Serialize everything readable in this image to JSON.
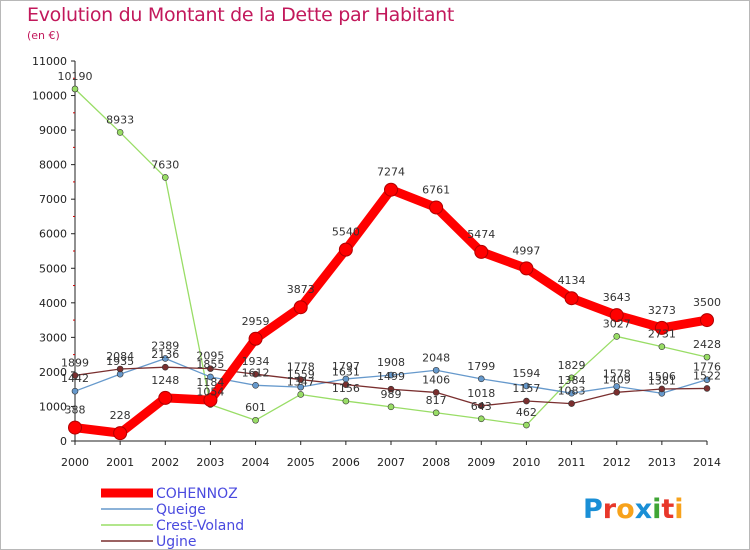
{
  "chart_data": {
    "type": "line",
    "title": "Evolution du Montant de la Dette par Habitant",
    "subtitle": "(en €)",
    "x": [
      "2000",
      "2001",
      "2002",
      "2003",
      "2004",
      "2005",
      "2006",
      "2007",
      "2008",
      "2009",
      "2010",
      "2011",
      "2012",
      "2013",
      "2014"
    ],
    "y_ticks": [
      "0",
      "1000",
      "2000",
      "3000",
      "4000",
      "5000",
      "6000",
      "7000",
      "8000",
      "9000",
      "10000",
      "11000"
    ],
    "ylim": [
      0,
      11000
    ],
    "grid": false,
    "legend_position": "bottom-left",
    "series": [
      {
        "name": "COHENNOZ",
        "color": "#ff0000",
        "values": [
          388,
          228,
          1248,
          1184,
          2959,
          3873,
          5540,
          7274,
          6761,
          5474,
          4997,
          4134,
          3643,
          3273,
          3500
        ],
        "labels": [
          "388",
          "228",
          "1248",
          "1184",
          "2959",
          "3873",
          "5540",
          "7274",
          "6761",
          "5474",
          "4997",
          "4134",
          "3643",
          "3273",
          "3500"
        ]
      },
      {
        "name": "Queige",
        "color": "#6699cc",
        "values": [
          1442,
          1935,
          2389,
          1855,
          1612,
          1559,
          1797,
          1908,
          2048,
          1799,
          1594,
          1384,
          1578,
          1381,
          1776
        ],
        "labels": [
          "1442",
          "1935",
          "2389",
          "1855",
          "1612",
          "1559",
          "1797",
          "1908",
          "2048",
          "1799",
          "1594",
          "1384",
          "1578",
          "1381",
          "1776"
        ]
      },
      {
        "name": "Crest-Voland",
        "color": "#99dd66",
        "values": [
          10190,
          8933,
          7630,
          1054,
          601,
          1347,
          1156,
          989,
          817,
          643,
          462,
          1829,
          3027,
          2731,
          2428
        ],
        "labels": [
          "10190",
          "8933",
          "7630",
          "1054",
          "601",
          "1347",
          "1156",
          "989",
          "817",
          "643",
          "462",
          "1829",
          "3027",
          "2731",
          "2428"
        ]
      },
      {
        "name": "Ugine",
        "color": "#7a2f2f",
        "values": [
          1899,
          2084,
          2136,
          2095,
          1934,
          1778,
          1631,
          1499,
          1406,
          1018,
          1157,
          1083,
          1409,
          1506,
          1522
        ],
        "labels": [
          "1899",
          "2084",
          "2136",
          "2095",
          "1934",
          "1778",
          "1631",
          "1499",
          "1406",
          "1018",
          "1157",
          "1083",
          "1409",
          "1506",
          "1522"
        ]
      }
    ]
  },
  "logo": {
    "text": "Proxiti",
    "letters": [
      "P",
      "r",
      "o",
      "x",
      "i",
      "t",
      "i"
    ],
    "colors": [
      "#1a8fd6",
      "#e8372a",
      "#f7a21b",
      "#1a8fd6",
      "#3fa535",
      "#e8372a",
      "#f7a21b"
    ]
  }
}
